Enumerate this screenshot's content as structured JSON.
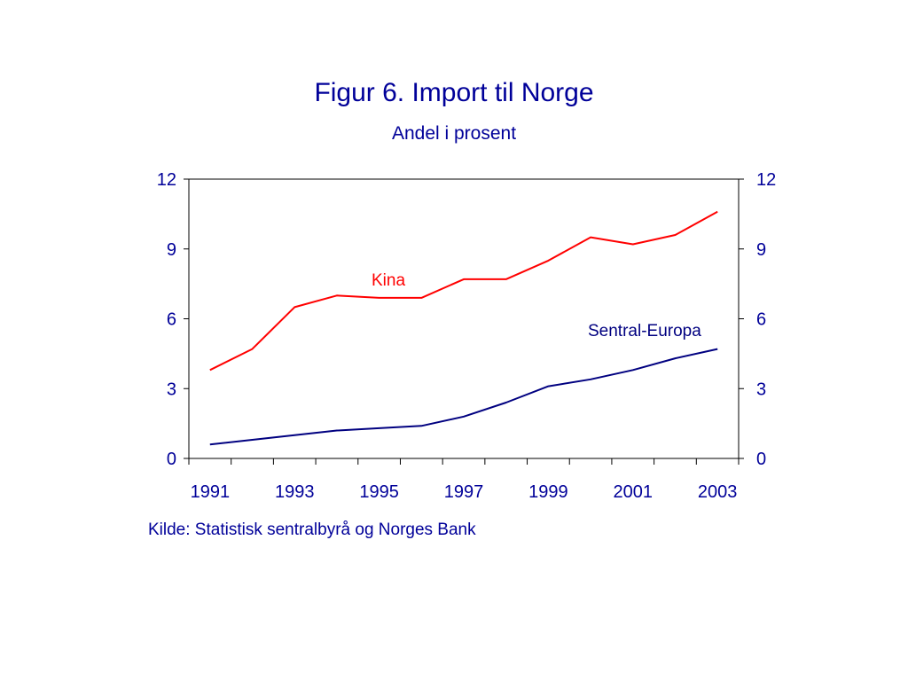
{
  "chart_data": {
    "type": "line",
    "title": "Figur 6. Import til Norge",
    "subtitle": "Andel i prosent",
    "x": [
      1991.5,
      1992.5,
      1993.5,
      1994.5,
      1995.5,
      1996.5,
      1997.5,
      1998.5,
      1999.5,
      2000.5,
      2001.5,
      2002.5,
      2003.5
    ],
    "x_ticks": [
      "1991",
      "1993",
      "1995",
      "1997",
      "1999",
      "2001",
      "2003"
    ],
    "xlim": [
      1991,
      2004
    ],
    "ylim": [
      0,
      12
    ],
    "y_ticks": [
      0,
      3,
      6,
      9,
      12
    ],
    "y_axis_left": true,
    "y_axis_right": true,
    "grid": false,
    "legend": "inline labels",
    "series": [
      {
        "name": "Kina",
        "color": "#ff0000",
        "values": [
          3.8,
          4.7,
          6.5,
          7.0,
          6.9,
          6.9,
          7.7,
          7.7,
          8.5,
          9.5,
          9.2,
          9.6,
          10.6
        ]
      },
      {
        "name": "Sentral-Europa",
        "color": "#000080",
        "values": [
          0.6,
          0.8,
          1.0,
          1.2,
          1.3,
          1.4,
          1.8,
          2.4,
          3.1,
          3.4,
          3.8,
          4.3,
          4.7
        ]
      }
    ],
    "source": "Kilde: Statistisk sentralbyrå og Norges Bank"
  }
}
